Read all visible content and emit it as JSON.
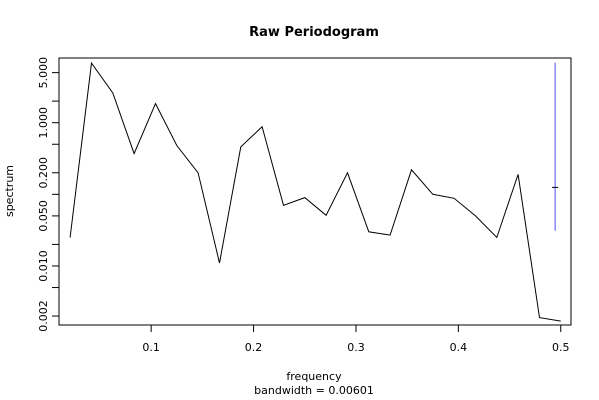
{
  "chart_data": {
    "type": "line",
    "title": "Raw Periodogram",
    "xlabel": "frequency",
    "sublabel": "bandwidth = 0.00601",
    "ylabel": "spectrum",
    "y_scale": "log",
    "xlim": [
      0.01,
      0.51
    ],
    "ylim": [
      0.0015,
      8.0
    ],
    "x_ticks": [
      0.1,
      0.2,
      0.3,
      0.4,
      0.5
    ],
    "x_tick_labels": [
      "0.1",
      "0.2",
      "0.3",
      "0.4",
      "0.5"
    ],
    "y_ticks": [
      0.002,
      0.01,
      0.05,
      0.2,
      1.0,
      5.0
    ],
    "y_tick_labels": [
      "0.002",
      "0.010",
      "0.050",
      "0.200",
      "1.000",
      "5.000"
    ],
    "y_minor_ticks": [
      0.005,
      0.02,
      0.1,
      0.5,
      2.0
    ],
    "series": [
      {
        "color": "#000000",
        "x": [
          0.0208,
          0.0417,
          0.0625,
          0.0833,
          0.1042,
          0.125,
          0.1458,
          0.1667,
          0.1875,
          0.2083,
          0.2292,
          0.25,
          0.2708,
          0.2917,
          0.3125,
          0.3333,
          0.3542,
          0.375,
          0.3958,
          0.4167,
          0.4375,
          0.4583,
          0.4792,
          0.5
        ],
        "y": [
          0.025,
          6.8,
          2.6,
          0.37,
          1.85,
          0.48,
          0.2,
          0.011,
          0.46,
          0.88,
          0.07,
          0.09,
          0.051,
          0.2,
          0.03,
          0.027,
          0.22,
          0.1,
          0.088,
          0.05,
          0.025,
          0.19,
          0.0019,
          0.0017
        ]
      }
    ],
    "bandwidth_marker": {
      "color": "#4a4aff",
      "x": 0.4945,
      "center": 0.125,
      "lower": 0.031,
      "upper": 6.9,
      "bandwidth": 0.00601
    },
    "grid": false,
    "legend": "none"
  }
}
